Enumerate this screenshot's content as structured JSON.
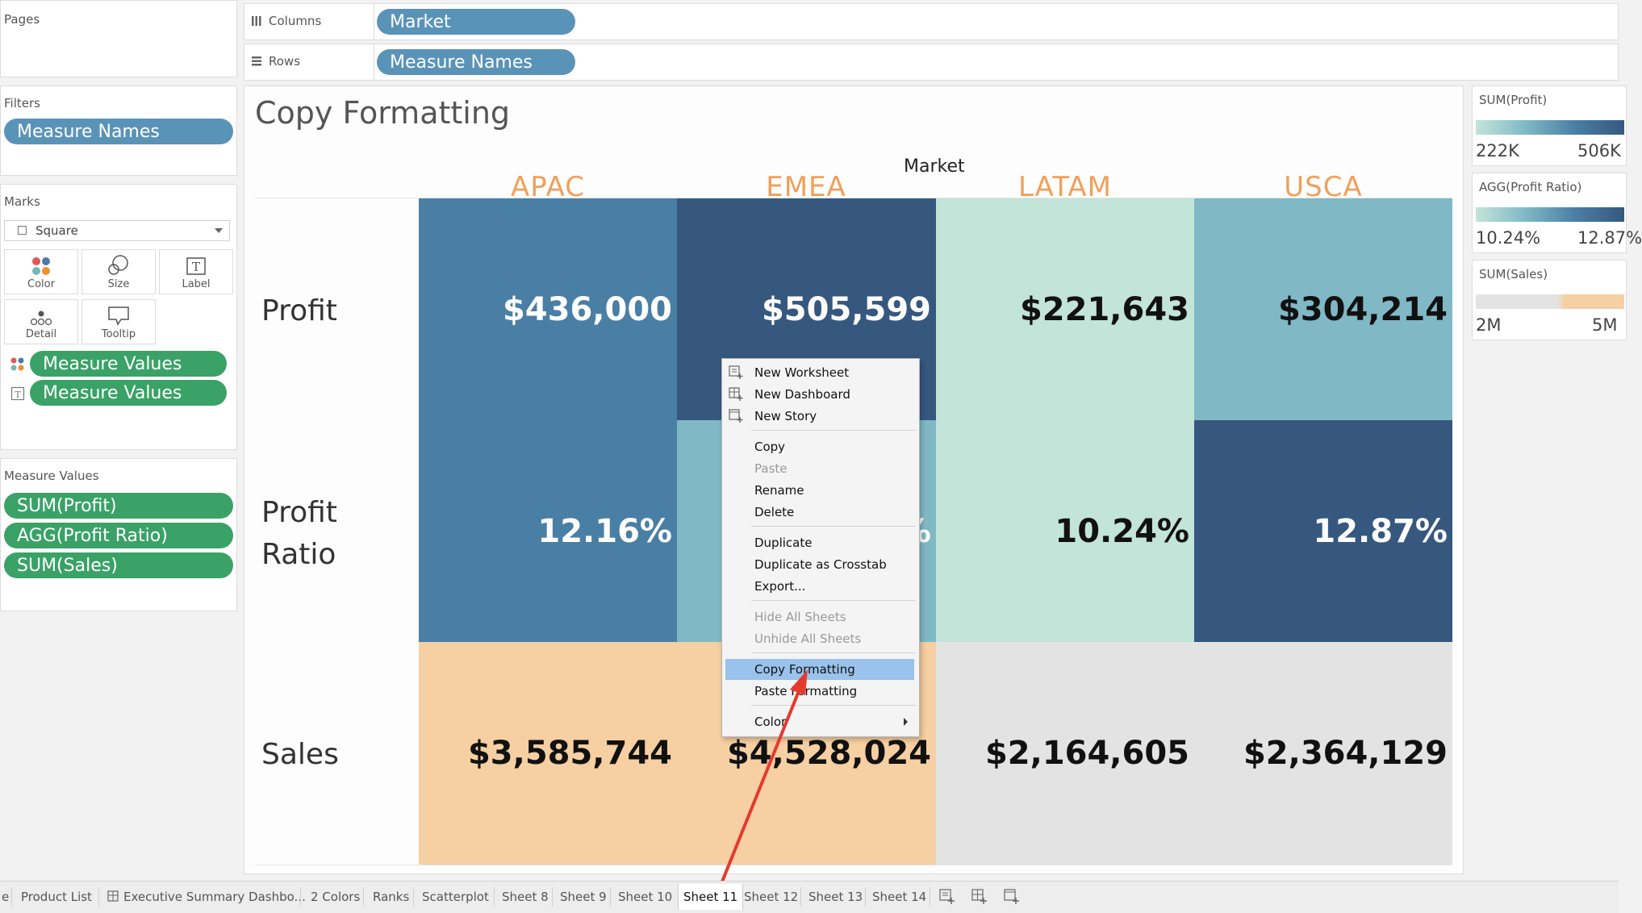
{
  "shelves": {
    "pages_label": "Pages",
    "columns_label": "Columns",
    "columns_pill": "Market",
    "rows_label": "Rows",
    "rows_pill": "Measure Names"
  },
  "filters": {
    "title": "Filters",
    "pill": "Measure Names"
  },
  "marks": {
    "title": "Marks",
    "mark_type": "Square",
    "buttons": {
      "color": "Color",
      "size": "Size",
      "label": "Label",
      "detail": "Detail",
      "tooltip": "Tooltip"
    },
    "pills": [
      "Measure Values",
      "Measure Values"
    ]
  },
  "measure_values": {
    "title": "Measure Values",
    "pills": [
      "SUM(Profit)",
      "AGG(Profit Ratio)",
      "SUM(Sales)"
    ]
  },
  "view": {
    "title": "Copy Formatting",
    "column_header_title": "Market",
    "columns": [
      "APAC",
      "EMEA",
      "LATAM",
      "USCA"
    ],
    "rows": [
      "Profit",
      "Profit Ratio",
      "Sales"
    ],
    "cells": {
      "profit": [
        "$436,000",
        "$505,599",
        "$221,643",
        "$304,214"
      ],
      "profit_ratio": [
        "12.16%",
        "%",
        "10.24%",
        "12.87%"
      ],
      "sales": [
        "$3,585,744",
        "$4,528,024",
        "$2,164,605",
        "$2,364,129"
      ]
    },
    "colors": {
      "blue_mid": "#4a7fa5",
      "blue_dark": "#36587f",
      "teal_light": "#c3e4d8",
      "teal_mid": "#80b9c5",
      "orange_light": "#f6cfa2",
      "grey": "#e3e3e3",
      "header_orange": "#f0a05a"
    }
  },
  "context_menu": {
    "group1": [
      "New Worksheet",
      "New Dashboard",
      "New Story"
    ],
    "group2": [
      "Copy",
      "Paste",
      "Rename",
      "Delete"
    ],
    "group3": [
      "Duplicate",
      "Duplicate as Crosstab",
      "Export..."
    ],
    "group4": [
      "Hide All Sheets",
      "Unhide All Sheets"
    ],
    "group5": [
      "Copy Formatting",
      "Paste Formatting"
    ],
    "group6": [
      "Color"
    ],
    "highlighted": "Copy Formatting"
  },
  "legends": [
    {
      "title": "SUM(Profit)",
      "min": "222K",
      "max": "506K"
    },
    {
      "title": "AGG(Profit Ratio)",
      "min": "10.24%",
      "max": "12.87%"
    },
    {
      "title": "SUM(Sales)",
      "min": "2M",
      "max": "5M"
    }
  ],
  "tabs": {
    "items": [
      "e",
      "Product List",
      "Executive Summary Dashbo...",
      "2 Colors",
      "Ranks",
      "Scatterplot",
      "Sheet 8",
      "Sheet 9",
      "Sheet 10",
      "Sheet 11",
      "Sheet 12",
      "Sheet 13",
      "Sheet 14"
    ],
    "active": "Sheet 11"
  }
}
